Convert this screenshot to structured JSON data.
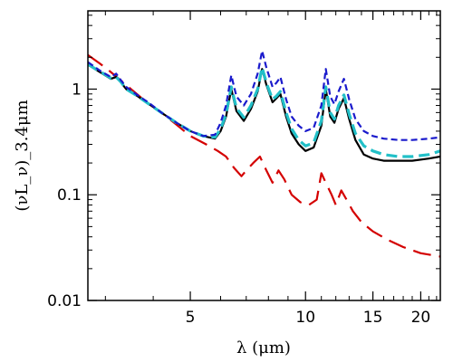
{
  "chart_data": {
    "type": "line",
    "xlabel": "λ (μm)",
    "ylabel": "(νL_ν)_3.4μm",
    "x_scale": "log",
    "y_scale": "log",
    "xlim": [
      2.7,
      22.5
    ],
    "ylim": [
      0.01,
      5.5
    ],
    "grid": false,
    "x_ticks": [
      {
        "value": 5,
        "label": "5"
      },
      {
        "value": 10,
        "label": "10"
      },
      {
        "value": 15,
        "label": "15"
      },
      {
        "value": 20,
        "label": "20"
      }
    ],
    "y_ticks": [
      {
        "value": 1,
        "label": "1"
      },
      {
        "value": 0.1,
        "label": "0.1"
      },
      {
        "value": 0.01,
        "label": "0.01"
      }
    ],
    "series": [
      {
        "color": "#d40000",
        "dash": "long-dash",
        "x": [
          2.7,
          2.9,
          3.1,
          3.3,
          3.5,
          3.8,
          4.2,
          4.6,
          5.0,
          5.5,
          5.9,
          6.2,
          6.5,
          6.8,
          7.0,
          7.3,
          7.6,
          7.9,
          8.2,
          8.5,
          8.8,
          9.2,
          9.7,
          10.2,
          10.7,
          11.0,
          11.3,
          11.7,
          12.0,
          12.4,
          12.8,
          13.3,
          14.0,
          15.0,
          16.5,
          18.0,
          20.0,
          22.5
        ],
        "y": [
          2.1,
          1.75,
          1.45,
          1.2,
          1.0,
          0.78,
          0.6,
          0.46,
          0.36,
          0.3,
          0.26,
          0.23,
          0.18,
          0.15,
          0.17,
          0.2,
          0.23,
          0.17,
          0.13,
          0.17,
          0.14,
          0.1,
          0.085,
          0.08,
          0.09,
          0.16,
          0.13,
          0.1,
          0.08,
          0.11,
          0.09,
          0.07,
          0.055,
          0.045,
          0.037,
          0.032,
          0.028,
          0.026
        ]
      },
      {
        "color": "#000000",
        "dash": "solid",
        "x": [
          2.7,
          2.9,
          3.1,
          3.2,
          3.3,
          3.4,
          3.6,
          3.9,
          4.2,
          4.6,
          5.0,
          5.4,
          5.8,
          6.0,
          6.2,
          6.4,
          6.6,
          6.9,
          7.2,
          7.5,
          7.7,
          7.9,
          8.2,
          8.4,
          8.6,
          8.9,
          9.2,
          9.6,
          10.0,
          10.5,
          11.0,
          11.3,
          11.6,
          11.9,
          12.2,
          12.6,
          13.0,
          13.5,
          14.2,
          15.0,
          16.0,
          17.5,
          19.0,
          21.0,
          22.5
        ],
        "y": [
          1.7,
          1.45,
          1.25,
          1.3,
          1.15,
          1.0,
          0.88,
          0.72,
          0.6,
          0.48,
          0.4,
          0.36,
          0.34,
          0.4,
          0.55,
          1.0,
          0.62,
          0.5,
          0.65,
          0.95,
          1.55,
          1.1,
          0.75,
          0.82,
          0.9,
          0.55,
          0.38,
          0.3,
          0.26,
          0.28,
          0.45,
          1.0,
          0.55,
          0.48,
          0.65,
          0.82,
          0.52,
          0.33,
          0.24,
          0.22,
          0.21,
          0.21,
          0.21,
          0.22,
          0.23
        ]
      },
      {
        "color": "#22c0c8",
        "dash": "dash",
        "x": [
          2.7,
          2.9,
          3.1,
          3.2,
          3.3,
          3.4,
          3.6,
          3.9,
          4.2,
          4.6,
          5.0,
          5.4,
          5.8,
          6.0,
          6.2,
          6.4,
          6.6,
          6.9,
          7.2,
          7.5,
          7.7,
          7.9,
          8.2,
          8.4,
          8.6,
          8.9,
          9.2,
          9.6,
          10.0,
          10.5,
          11.0,
          11.3,
          11.6,
          11.9,
          12.2,
          12.6,
          13.0,
          13.5,
          14.2,
          15.0,
          16.0,
          17.5,
          19.0,
          21.0,
          22.5
        ],
        "y": [
          1.72,
          1.47,
          1.27,
          1.3,
          1.16,
          1.0,
          0.88,
          0.72,
          0.6,
          0.48,
          0.4,
          0.36,
          0.35,
          0.42,
          0.58,
          1.05,
          0.66,
          0.54,
          0.7,
          1.0,
          1.6,
          1.15,
          0.8,
          0.86,
          0.95,
          0.6,
          0.42,
          0.33,
          0.29,
          0.31,
          0.5,
          1.05,
          0.6,
          0.52,
          0.7,
          0.88,
          0.58,
          0.38,
          0.29,
          0.26,
          0.24,
          0.23,
          0.23,
          0.24,
          0.26
        ]
      },
      {
        "color": "#1a1acc",
        "dash": "short-dash",
        "x": [
          2.7,
          2.9,
          3.1,
          3.2,
          3.3,
          3.4,
          3.6,
          3.9,
          4.2,
          4.6,
          5.0,
          5.4,
          5.8,
          6.0,
          6.2,
          6.4,
          6.6,
          6.9,
          7.2,
          7.5,
          7.7,
          7.9,
          8.2,
          8.4,
          8.6,
          8.9,
          9.2,
          9.6,
          10.0,
          10.5,
          11.0,
          11.3,
          11.6,
          11.9,
          12.2,
          12.6,
          13.0,
          13.5,
          14.2,
          15.0,
          16.0,
          17.5,
          19.0,
          21.0,
          22.5
        ],
        "y": [
          1.8,
          1.5,
          1.3,
          1.4,
          1.2,
          1.05,
          0.9,
          0.74,
          0.6,
          0.48,
          0.4,
          0.36,
          0.37,
          0.48,
          0.7,
          1.35,
          0.85,
          0.7,
          0.9,
          1.4,
          2.3,
          1.6,
          1.05,
          1.15,
          1.3,
          0.8,
          0.55,
          0.45,
          0.4,
          0.43,
          0.7,
          1.55,
          0.85,
          0.72,
          0.95,
          1.25,
          0.8,
          0.52,
          0.4,
          0.36,
          0.34,
          0.33,
          0.33,
          0.34,
          0.35
        ]
      }
    ]
  }
}
